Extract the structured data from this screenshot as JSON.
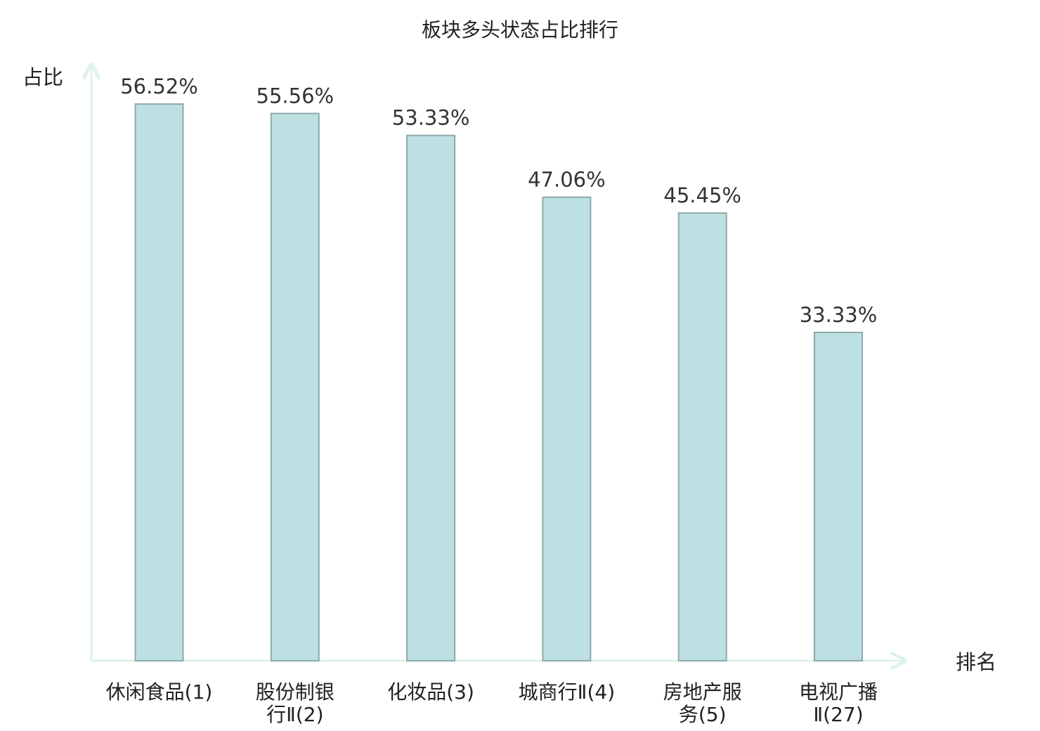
{
  "chart_data": {
    "type": "bar",
    "title": "板块多头状态占比排行",
    "ylabel": "占比",
    "xlabel": "排名",
    "categories": [
      [
        "休闲食品(1)"
      ],
      [
        "股份制银",
        "行Ⅱ(2)"
      ],
      [
        "化妆品(3)"
      ],
      [
        "城商行Ⅱ(4)"
      ],
      [
        "房地产服",
        "务(5)"
      ],
      [
        "电视广播",
        "Ⅱ(27)"
      ]
    ],
    "values": [
      56.52,
      55.56,
      53.33,
      47.06,
      45.45,
      33.33
    ],
    "data_labels": [
      "56.52%",
      "55.56%",
      "53.33%",
      "47.06%",
      "45.45%",
      "33.33%"
    ],
    "highlight_index": 5,
    "ylim": [
      0,
      60
    ],
    "grid": false,
    "colors": {
      "bar_fill": "#bde0e3",
      "bar_stroke": "#8fa9ab",
      "axis": "#dff2ef",
      "highlight_text": "#e8141e",
      "text": "#222222"
    }
  }
}
